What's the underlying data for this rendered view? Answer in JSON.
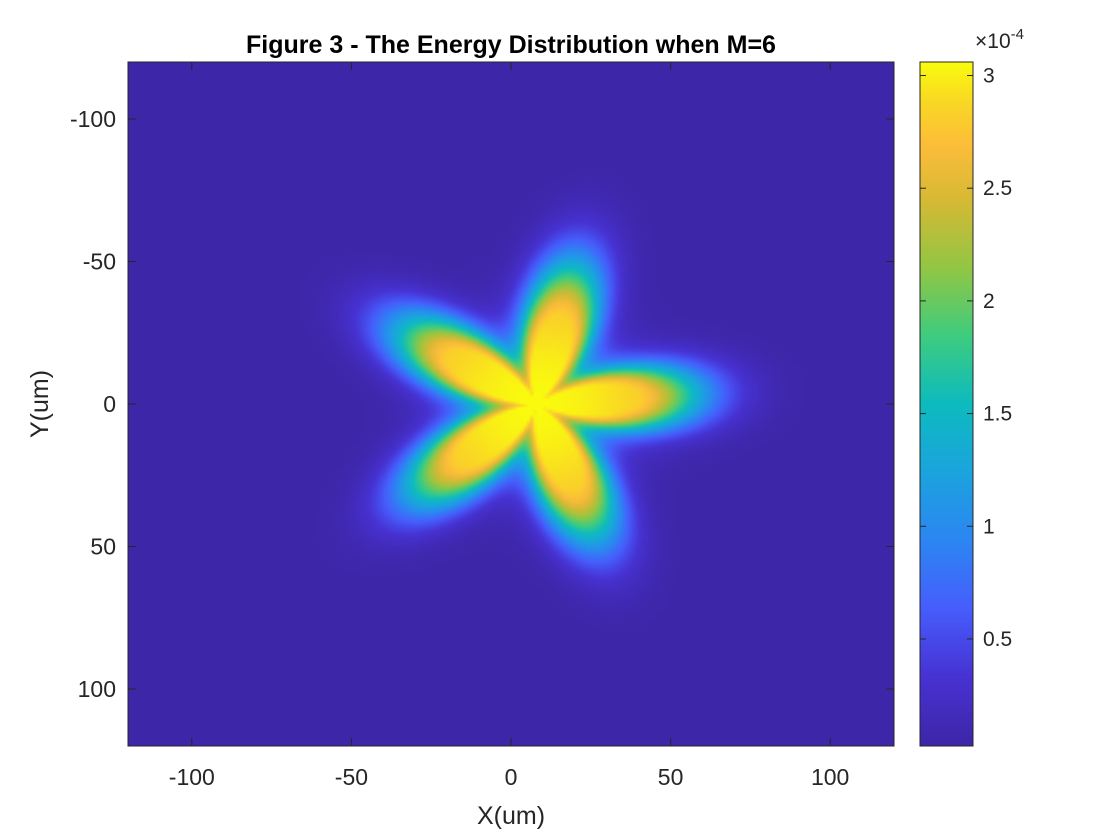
{
  "chart_data": {
    "type": "heatmap",
    "title": "Figure 3 - The Energy Distribution when M=6",
    "xlabel": "X(um)",
    "ylabel": "Y(um)",
    "xlim": [
      -120,
      120
    ],
    "ylim": [
      -120,
      120
    ],
    "y_direction": "reversed",
    "x_ticks": [
      {
        "value": -100,
        "label": "-100"
      },
      {
        "value": -50,
        "label": "-50"
      },
      {
        "value": 0,
        "label": "0"
      },
      {
        "value": 50,
        "label": "50"
      },
      {
        "value": 100,
        "label": "100"
      }
    ],
    "y_ticks": [
      {
        "value": -100,
        "label": "-100"
      },
      {
        "value": -50,
        "label": "-50"
      },
      {
        "value": 0,
        "label": "0"
      },
      {
        "value": 50,
        "label": "50"
      },
      {
        "value": 100,
        "label": "100"
      }
    ],
    "colormap": "parula",
    "colorbar": {
      "range": [
        2.5e-06,
        0.000306
      ],
      "exponent_base": "×10",
      "exponent_power": "-4",
      "ticks": [
        {
          "value": 5e-05,
          "label": "0.5"
        },
        {
          "value": 0.0001,
          "label": "1"
        },
        {
          "value": 0.00015,
          "label": "1.5"
        },
        {
          "value": 0.0002,
          "label": "2"
        },
        {
          "value": 0.00025,
          "label": "2.5"
        },
        {
          "value": 0.0003,
          "label": "3"
        }
      ]
    },
    "shape": {
      "description_type": "five-lobed star",
      "peak_value": 0.000306,
      "center": [
        8,
        0
      ],
      "lobe_count": 5,
      "lobe_tip_angles_deg": [
        -4,
        68,
        140,
        212,
        284
      ],
      "base_radius": 50,
      "lobe_amplitude": 16,
      "edge_width": 16
    },
    "grid": false,
    "legend": "none"
  }
}
